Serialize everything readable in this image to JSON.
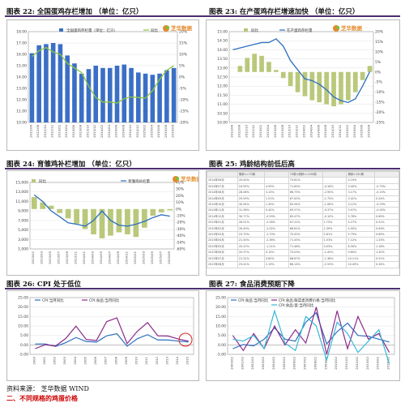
{
  "titles": {
    "c22": "图表 22: 全国蛋鸡存栏增加 （单位：亿只）",
    "c23": "图表 23: 在产蛋鸡存栏增速加快 （单位：亿只）",
    "c24": "图表 24: 育雏鸡补栏增加 （单位：亿只）",
    "c25": "图表 25: 鸡龄结构前低后高",
    "c26": "图表 26: CPI 处于低位",
    "c27": "图表 27: 食品消费预期下降"
  },
  "logo_text": "芝华数据",
  "source": "资料来源： 芝华数据 WIND",
  "next_section": "二、不同规格的鸡蛋价格",
  "colors": {
    "bar": "#3b6fc6",
    "line_green": "#8cc63f",
    "bar_olive": "#b9c87a",
    "line_blue": "#2c6fbf",
    "cpi_purple": "#8b2a8b",
    "rule": "#4b2f6e"
  },
  "chart_data": [
    {
      "id": "c22",
      "type": "bar+line",
      "x": [
        "2012/06",
        "2012/08",
        "2012/10",
        "2012/12",
        "2013/02",
        "2013/04",
        "2013/06",
        "2013/08",
        "2013/10",
        "2013/12",
        "2014/02",
        "2014/04",
        "2014/06",
        "2014/08",
        "2014/10",
        "2014/12",
        "2015/02",
        "2015/04",
        "2015/06",
        "2015/08",
        "2015/09"
      ],
      "yticks_left": [
        "18.00",
        "17.00",
        "16.00",
        "15.00",
        "14.00",
        "13.00",
        "12.00",
        "11.00",
        "10.00"
      ],
      "yticks_right": [
        "20%",
        "15%",
        "10%",
        "5%",
        "0%",
        "-5%",
        "-10%",
        "-15%",
        "-20%"
      ],
      "ylim": [
        10,
        18
      ],
      "y2lim": [
        -20,
        20
      ],
      "series": [
        {
          "name": "全国蛋鸡存栏量（单位：亿只）",
          "type": "bar",
          "values": [
            16.1,
            16.8,
            16.9,
            17.0,
            16.9,
            15.9,
            15.2,
            14.3,
            14.7,
            15.0,
            14.8,
            14.8,
            15.0,
            15.1,
            14.8,
            14.4,
            14.3,
            14.2,
            14.3,
            14.6,
            14.8
          ]
        },
        {
          "name": "同比",
          "type": "line",
          "values": [
            9.0,
            11.6,
            13.0,
            11.0,
            10.0,
            6.0,
            4.0,
            2.0,
            -4.0,
            -9.0,
            -11.0,
            -11.0,
            -11.5,
            -9.5,
            -8.8,
            -9.0,
            -9.3,
            -6.0,
            -1.0,
            3.0,
            5.0
          ]
        }
      ]
    },
    {
      "id": "c23",
      "type": "bar+line",
      "x": [
        "2012/06",
        "2012/08",
        "2012/10",
        "2012/12",
        "2013/02",
        "2013/04",
        "2013/06",
        "2013/08",
        "2013/10",
        "2013/12",
        "2014/02",
        "2014/04",
        "2014/06",
        "2014/08",
        "2014/10",
        "2014/12",
        "2015/02",
        "2015/04",
        "2015/06",
        "2015/08"
      ],
      "yticks_left": [
        "15.00",
        "14.50",
        "14.00",
        "13.50",
        "13.00",
        "12.50",
        "12.00",
        "11.50",
        "11.00",
        "10.50",
        "10.00"
      ],
      "yticks_right": [
        "20%",
        "15%",
        "10%",
        "5%",
        "0%",
        "-5%",
        "-10%",
        "-15%",
        "-20%",
        "-25%"
      ],
      "ylim": [
        10,
        15
      ],
      "y2lim": [
        -25,
        20
      ],
      "series": [
        {
          "name": "同比",
          "type": "bar",
          "values": [
            0,
            3,
            7,
            9,
            8,
            5,
            1,
            -3,
            -7,
            -10,
            -12,
            -14,
            -15,
            -16,
            -17,
            -16,
            -14,
            -10,
            -4,
            3
          ]
        },
        {
          "name": "在产蛋鸡存栏量",
          "type": "line",
          "values": [
            14.0,
            14.1,
            14.2,
            14.3,
            14.4,
            14.4,
            14.6,
            14.2,
            13.4,
            12.9,
            12.4,
            12.3,
            12.1,
            11.8,
            11.4,
            11.2,
            11.1,
            11.3,
            12.0,
            12.8
          ]
        }
      ]
    },
    {
      "id": "c24",
      "type": "bar+line",
      "x": [
        "2013/01",
        "2013/03",
        "2013/05",
        "2013/07",
        "2013/09",
        "2013/11",
        "2014/01",
        "2014/03",
        "2014/05",
        "2014/07",
        "2014/09",
        "2014/11",
        "2015/01",
        "2015/03",
        "2015/05",
        "2015/07",
        "2015/09"
      ],
      "yticks_left": [
        "15,000",
        "13,000",
        "11,000",
        "9,000",
        "7,000",
        "5,000",
        "3,000",
        "1,000"
      ],
      "yticks_right": [
        "40%",
        "30%",
        "20%",
        "10%",
        "0%",
        "-10%",
        "-20%",
        "-30%",
        "-40%",
        "-50%",
        "-60%"
      ],
      "ylim": [
        1000,
        15000
      ],
      "y2lim": [
        -60,
        40
      ],
      "series": [
        {
          "name": "同比",
          "type": "bar",
          "values": [
            18,
            10,
            5,
            -6,
            -14,
            -22,
            -30,
            -38,
            -44,
            -40,
            -35,
            -38,
            -42,
            -28,
            -10,
            -5,
            -2
          ]
        },
        {
          "name": "育雏鸡补栏量",
          "type": "line",
          "values": [
            12400,
            11000,
            9000,
            7800,
            6500,
            6200,
            5800,
            7000,
            9000,
            7000,
            6000,
            5800,
            6200,
            6800,
            7600,
            8200,
            7900
          ]
        }
      ]
    },
    {
      "id": "c25",
      "type": "table",
      "header": [
        "",
        "周龄<=70周",
        "",
        "70周<周龄<=150周",
        "",
        "周龄>150周",
        ""
      ],
      "rows": [
        [
          "2014年06月",
          "20.00%",
          "",
          "75.81%",
          "",
          "4.19%",
          ""
        ],
        [
          "2014年07月",
          "24.95%",
          "4.95%",
          "71.65%",
          "-4.16%",
          "3.40%",
          "-0.79%"
        ],
        [
          "2014年08月",
          "28.08%",
          "3.13%",
          "68.75%",
          "-2.90%",
          "3.17%",
          "-0.23%"
        ],
        [
          "2014年09月",
          "29.59%",
          "1.51%",
          "67.00%",
          "-1.75%",
          "3.41%",
          "0.24%"
        ],
        [
          "2014年10月",
          "30.94%",
          "1.35%",
          "65.94%",
          "-1.06%",
          "3.12%",
          "-0.29%"
        ],
        [
          "2014年11月",
          "31.36%",
          "0.42%",
          "65.57%",
          "-0.37%",
          "3.07%",
          "-0.05%"
        ],
        [
          "2014年12月",
          "30.77%",
          "-0.59%",
          "65.47%",
          "-0.10%",
          "3.76%",
          "0.69%"
        ],
        [
          "2015年01月",
          "28.51%",
          "-2.26%",
          "67.22%",
          "1.75%",
          "4.27%",
          "0.51%"
        ],
        [
          "2015年02月",
          "26.49%",
          "-2.02%",
          "68.61%",
          "1.39%",
          "4.90%",
          "0.63%"
        ],
        [
          "2015年03月",
          "23.79%",
          "-2.70%",
          "70.42%",
          "1.81%",
          "5.79%",
          "0.89%"
        ],
        [
          "2015年04月",
          "21.43%",
          "-2.36%",
          "71.45%",
          "1.03%",
          "7.12%",
          "1.33%"
        ],
        [
          "2015年05月",
          "20.22%",
          "-1.21%",
          "71.48%",
          "0.03%",
          "8.30%",
          "1.18%"
        ],
        [
          "2015年06月",
          "20.37%",
          "0.15%",
          "70.03%",
          "-1.45%",
          "9.60%",
          "1.30%"
        ],
        [
          "2015年07月",
          "21.22%",
          "0.85%",
          "68.67%",
          "-1.36%",
          "10.11%",
          "0.51%"
        ],
        [
          "2015年08月",
          "23.41%",
          "2.19%",
          "66.14%",
          "-2.53%",
          "10.45%",
          "0.34%"
        ]
      ]
    },
    {
      "id": "c26",
      "type": "line",
      "x": [
        "2000",
        "2001",
        "2002",
        "2003",
        "2004",
        "2005",
        "2006",
        "2007",
        "2008",
        "2009",
        "2010",
        "2011",
        "2012",
        "2013",
        "2014",
        "2015"
      ],
      "yticks": [
        "25.00",
        "20.00",
        "15.00",
        "10.00",
        "5.00",
        "0.00",
        "-5.00"
      ],
      "ylim": [
        -5,
        25
      ],
      "series": [
        {
          "name": "CPI:当月同比",
          "values": [
            0.5,
            0.5,
            -0.8,
            1.2,
            3.9,
            1.8,
            1.5,
            4.8,
            5.9,
            -0.7,
            3.3,
            5.4,
            2.6,
            2.6,
            2.0,
            1.6
          ]
        },
        {
          "name": "CPI:食品:当月同比",
          "values": [
            -2.0,
            0.1,
            -0.6,
            3.4,
            9.9,
            2.9,
            2.3,
            12.3,
            14.3,
            0.7,
            7.2,
            11.8,
            4.8,
            4.7,
            3.1,
            2.0
          ]
        }
      ]
    },
    {
      "id": "c27",
      "type": "line",
      "x": [
        "2000/02",
        "2001/02",
        "2002/02",
        "2003/02",
        "2004/02",
        "2005/02",
        "2006/02",
        "2007/02",
        "2008/02",
        "2009/02",
        "2010/02",
        "2011/02",
        "2012/02",
        "2013/02",
        "2014/02",
        "2015/02"
      ],
      "yticks": [
        "25.00",
        "20.00",
        "15.00",
        "10.00",
        "5.00",
        "0.00",
        "-5.00"
      ],
      "ylim": [
        -5,
        25
      ],
      "series": [
        {
          "name": "CPI:食品:当月同比",
          "values": [
            -2.0,
            0.2,
            -0.5,
            3.0,
            9.0,
            3.0,
            2.0,
            12.0,
            17.0,
            0.5,
            7.0,
            11.5,
            5.0,
            4.5,
            3.0,
            1.5
          ]
        },
        {
          "name": "CPI:食品:鲜菜类消费价格:当月同比",
          "values": [
            5.0,
            -3.0,
            6.0,
            -2.0,
            10.0,
            0.0,
            8.0,
            1.0,
            20.0,
            -5.0,
            18.0,
            -2.0,
            15.0,
            3.0,
            6.0,
            -4.0
          ]
        },
        {
          "name": "CPI:食品:蛋:当月同比",
          "values": [
            3.0,
            2.0,
            5.0,
            -2.0,
            18.0,
            1.0,
            -3.0,
            15.0,
            10.0,
            -8.0,
            12.0,
            6.0,
            -4.0,
            2.0,
            8.0,
            -10.0
          ]
        }
      ]
    }
  ]
}
